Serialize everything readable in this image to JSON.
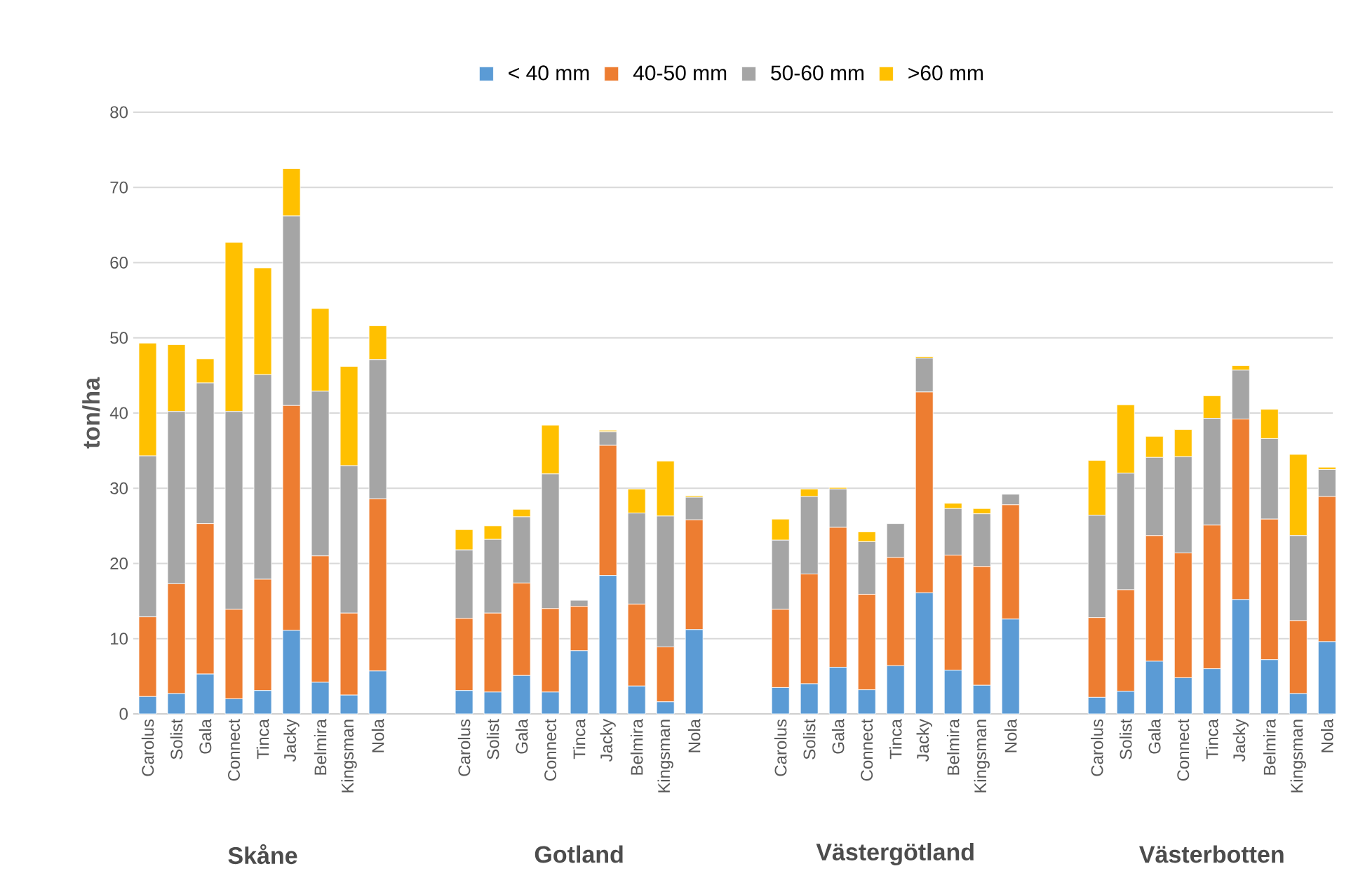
{
  "chart_data": {
    "type": "bar",
    "stacked": true,
    "ylabel": "ton/ha",
    "ylim": [
      0,
      80
    ],
    "yticks": [
      0,
      10,
      20,
      30,
      40,
      50,
      60,
      70,
      80
    ],
    "grid": "y",
    "legend": "top",
    "categories": [
      "Carolus",
      "Solist",
      "Gala",
      "Connect",
      "Tinca",
      "Jacky",
      "Belmira",
      "Kingsman",
      "Nola",
      null,
      null,
      "Carolus",
      "Solist",
      "Gala",
      "Connect",
      "Tinca",
      "Jacky",
      "Belmira",
      "Kingsman",
      "Nola",
      null,
      null,
      "Carolus",
      "Solist",
      "Gala",
      "Connect",
      "Tinca",
      "Jacky",
      "Belmira",
      "Kingsman",
      "Nola",
      null,
      null,
      "Carolus",
      "Solist",
      "Gala",
      "Connect",
      "Tinca",
      "Jacky",
      "Belmira",
      "Kingsman",
      "Nola"
    ],
    "annotations": [
      "Skåne",
      "Gotland",
      "Västergötland",
      "Västerbotten"
    ],
    "series": [
      {
        "name": "< 40 mm",
        "color": "#5b9bd5",
        "values": [
          2.3,
          2.7,
          5.3,
          2.0,
          3.1,
          11.1,
          4.2,
          2.5,
          5.7,
          null,
          null,
          3.1,
          2.9,
          5.1,
          2.9,
          8.4,
          18.4,
          3.7,
          1.6,
          11.2,
          null,
          null,
          3.5,
          4.0,
          6.2,
          3.2,
          6.4,
          16.1,
          5.8,
          3.8,
          12.6,
          null,
          null,
          2.2,
          3.0,
          7.0,
          4.8,
          6.0,
          15.2,
          7.2,
          2.7,
          9.6
        ]
      },
      {
        "name": "40-50 mm",
        "color": "#ed7d31",
        "values": [
          10.6,
          14.6,
          20.0,
          11.9,
          14.8,
          29.9,
          16.8,
          10.9,
          22.9,
          null,
          null,
          9.6,
          10.5,
          12.3,
          11.1,
          5.9,
          17.3,
          10.9,
          7.3,
          14.6,
          null,
          null,
          10.4,
          14.6,
          18.6,
          12.7,
          14.4,
          26.7,
          15.3,
          15.8,
          15.2,
          null,
          null,
          10.6,
          13.5,
          16.7,
          16.6,
          19.1,
          24.0,
          18.7,
          9.7,
          19.3
        ]
      },
      {
        "name": "50-60 mm",
        "color": "#a5a5a5",
        "values": [
          21.4,
          22.9,
          18.7,
          26.3,
          27.2,
          25.2,
          21.9,
          19.6,
          18.5,
          null,
          null,
          9.1,
          9.8,
          8.8,
          17.9,
          0.8,
          1.8,
          12.1,
          17.4,
          3.0,
          null,
          null,
          9.2,
          10.3,
          5.1,
          7.0,
          4.5,
          4.5,
          6.2,
          7.0,
          1.4,
          null,
          null,
          13.6,
          15.5,
          10.4,
          12.8,
          14.2,
          6.5,
          10.7,
          11.3,
          3.6
        ]
      },
      {
        "name": ">60 mm",
        "color": "#ffc000",
        "values": [
          15.0,
          8.9,
          3.2,
          22.5,
          14.2,
          6.3,
          11.0,
          13.2,
          4.5,
          null,
          null,
          2.7,
          1.8,
          1.0,
          6.5,
          0,
          0.2,
          3.2,
          7.3,
          0.2,
          null,
          null,
          2.8,
          1.0,
          0.2,
          1.3,
          0,
          0.2,
          0.7,
          0.7,
          0,
          null,
          null,
          7.3,
          9.1,
          2.8,
          3.6,
          3.0,
          0.6,
          3.9,
          10.8,
          0.3
        ]
      }
    ]
  }
}
